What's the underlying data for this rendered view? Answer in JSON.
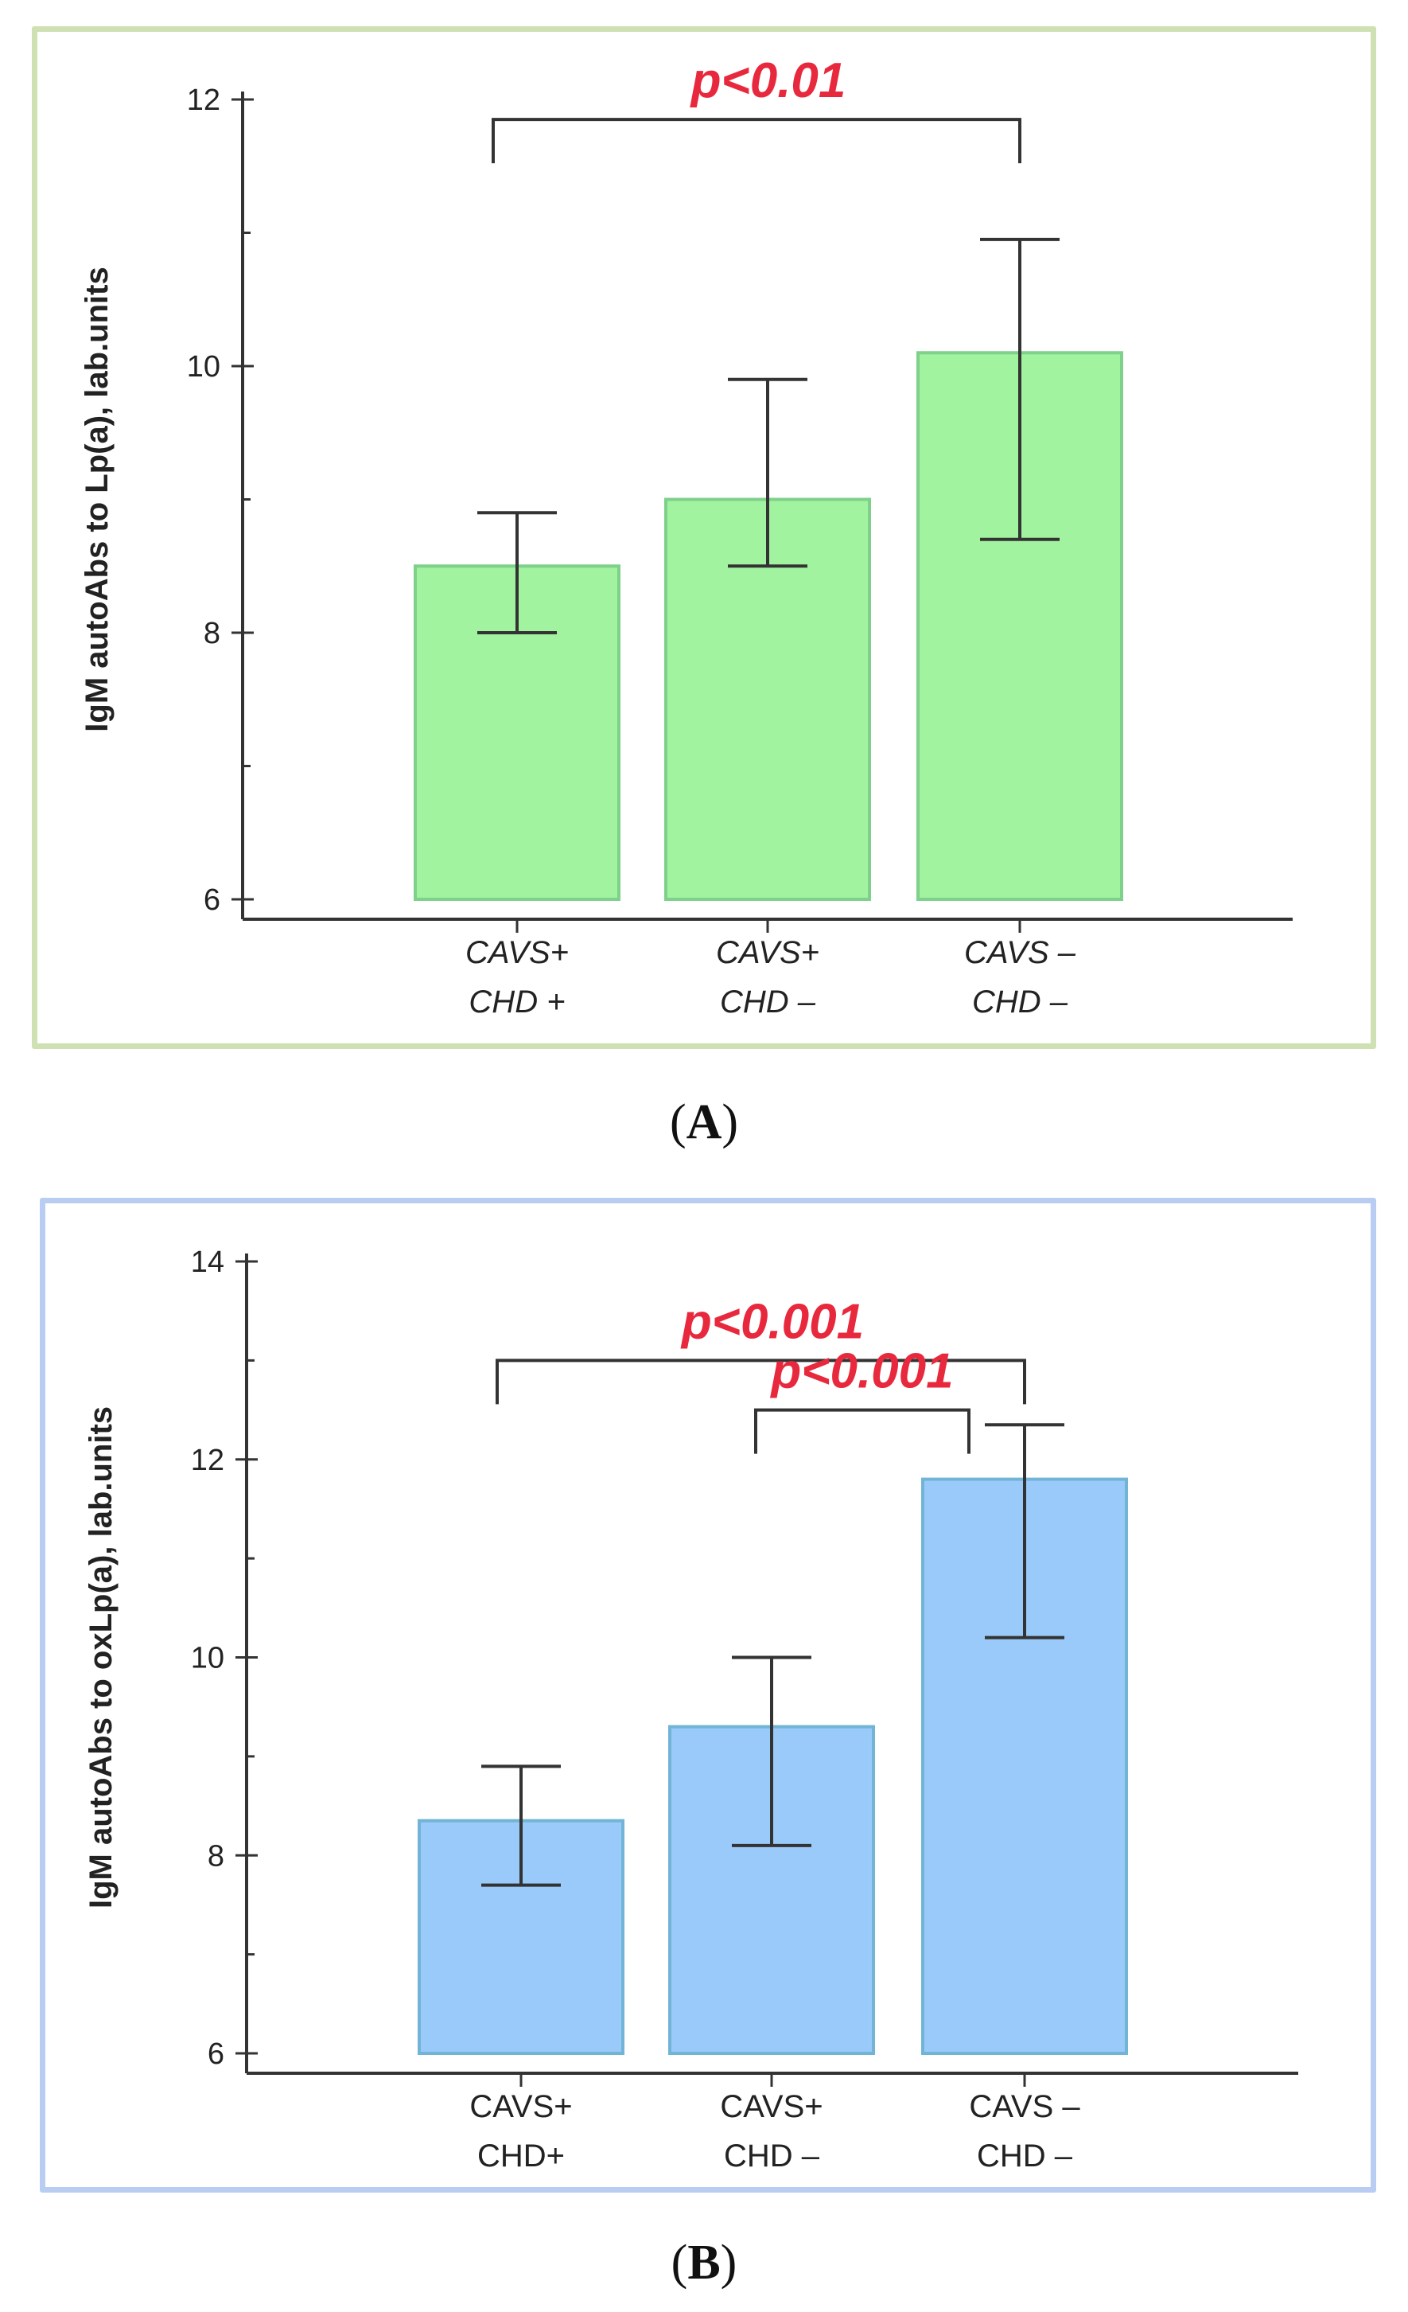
{
  "colors": {
    "bar_a": "#a1f3a0",
    "bar_a_edge": "#7fd08a",
    "bar_b": "#99caf9",
    "bar_b_edge": "#72b4d6",
    "axis": "#333333",
    "pvalue": "#e8283c"
  },
  "chart_data": [
    {
      "type": "bar",
      "panel": "A",
      "caption": "A",
      "ylabel": "IgM autoAbs to Lp(a), lab.units",
      "ylim": [
        6,
        12
      ],
      "yticks": [
        6,
        8,
        10,
        12
      ],
      "categories": [
        [
          "CAVS+",
          "CHD +"
        ],
        [
          "CAVS+",
          "CHD –"
        ],
        [
          "CAVS –",
          "CHD –"
        ]
      ],
      "values": [
        8.5,
        9.0,
        10.1
      ],
      "error_low": [
        8.0,
        8.5,
        8.7
      ],
      "error_high": [
        8.9,
        9.9,
        10.95
      ],
      "significance": [
        {
          "from": 0,
          "to": 2,
          "label": "p<0.01",
          "level": 11.85
        }
      ]
    },
    {
      "type": "bar",
      "panel": "B",
      "caption": "B",
      "ylabel": "IgM autoAbs to oxLp(a), lab.units",
      "ylim": [
        6,
        14
      ],
      "yticks": [
        6,
        8,
        10,
        12,
        14
      ],
      "categories": [
        [
          "CAVS+",
          "CHD+"
        ],
        [
          "CAVS+",
          "CHD –"
        ],
        [
          "CAVS –",
          "CHD –"
        ]
      ],
      "values": [
        8.35,
        9.3,
        11.8
      ],
      "error_low": [
        7.7,
        8.1,
        10.2
      ],
      "error_high": [
        8.9,
        10.0,
        12.35
      ],
      "significance": [
        {
          "from": 0,
          "to": 2,
          "label": "p<0.001",
          "level": 13.0
        },
        {
          "from": 1,
          "to": 2,
          "label": "p<0.001",
          "level": 12.5
        }
      ]
    }
  ]
}
